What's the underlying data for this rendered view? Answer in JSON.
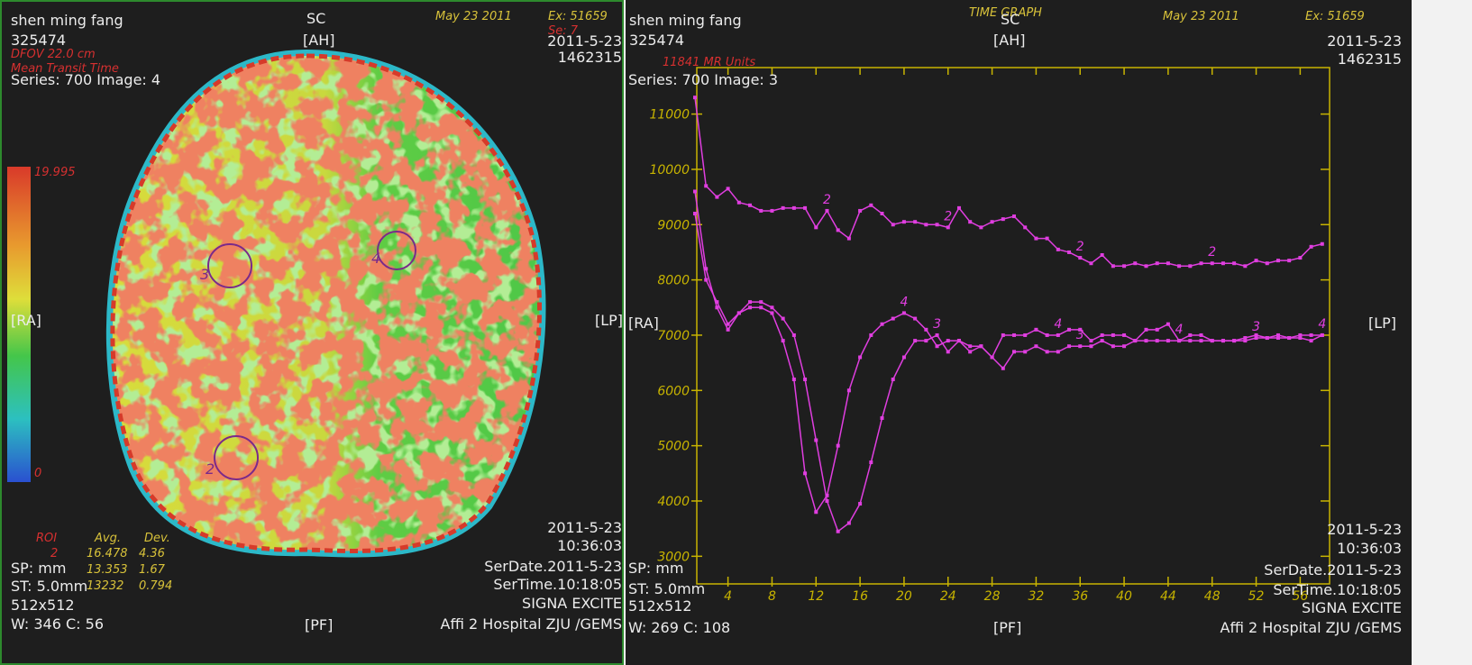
{
  "left_panel": {
    "patient": "shen ming fang",
    "patient_id": "325474",
    "dfov": "DFOV 22.0 cm",
    "map_name": "Mean Transit Time",
    "series_image": "Series: 700 Image: 4",
    "plane": "SC",
    "top_orientation": "[AH]",
    "date": "May 23 2011",
    "exam": "Ex: 51659",
    "series_no": "Se: 7",
    "study_date": "2011-5-23",
    "study_id": "1462315",
    "left_orientation": "[RA]",
    "right_orientation": "[LP]",
    "colorbar_max": "19.995",
    "colorbar_min": "0",
    "roi_table": {
      "header": [
        "ROI",
        "Avg.",
        "Dev."
      ],
      "rows": [
        [
          "2",
          "16.478",
          "4.36"
        ],
        [
          "",
          "13.353",
          "1.67"
        ],
        [
          "",
          "13232",
          "0.794"
        ]
      ]
    },
    "roi_labels": [
      "3",
      "4",
      "2"
    ],
    "spacing": "SP: mm",
    "thickness": "ST: 5.0mm",
    "matrix": "512x512",
    "window": "W: 346 C: 56",
    "bottom_orientation": "[PF]",
    "acq_date": "2011-5-23",
    "acq_time": "10:36:03",
    "ser_date": "SerDate.2011-5-23",
    "ser_time": "SerTime.10:18:05",
    "scanner": "SIGNA EXCITE",
    "hospital": "Affi 2 Hospital ZJU /GEMS"
  },
  "right_panel": {
    "patient": "shen ming fang",
    "patient_id": "325474",
    "graph_title": "TIME GRAPH",
    "plane": "SC",
    "top_orientation": "[AH]",
    "date": "May 23 2011",
    "exam": "Ex: 51659",
    "study_date": "2011-5-23",
    "study_id": "1462315",
    "series_image": "Series: 700 Image: 3",
    "left_orientation": "[RA]",
    "right_orientation": "[LP]",
    "spacing": "SP: mm",
    "thickness": "ST: 5.0mm",
    "matrix": "512x512",
    "window": "W: 269 C: 108",
    "bottom_orientation": "[PF]",
    "acq_date": "2011-5-23",
    "acq_time": "10:36:03",
    "ser_date": "SerDate.2011-5-23",
    "ser_time": "SerTime.10:18:05",
    "scanner": "SIGNA EXCITE",
    "hospital": "Affi 2 Hospital ZJU /GEMS"
  },
  "chart_data": {
    "type": "line",
    "y_label": "11841 MR Units",
    "x": [
      1,
      2,
      3,
      4,
      5,
      6,
      7,
      8,
      9,
      10,
      11,
      12,
      13,
      14,
      15,
      16,
      17,
      18,
      19,
      20,
      21,
      22,
      23,
      24,
      25,
      26,
      27,
      28,
      29,
      30,
      31,
      32,
      33,
      34,
      35,
      36,
      37,
      38,
      39,
      40,
      41,
      42,
      43,
      44,
      45,
      46,
      47,
      48,
      49,
      50,
      51,
      52,
      53,
      54,
      55,
      56,
      57,
      58
    ],
    "series": [
      {
        "name": "2",
        "color": "#e03ee0",
        "values": [
          11300,
          9700,
          9500,
          9650,
          9400,
          9350,
          9250,
          9250,
          9300,
          9300,
          9300,
          8950,
          9250,
          8900,
          8750,
          9250,
          9350,
          9200,
          9000,
          9050,
          9050,
          9000,
          9000,
          8950,
          9300,
          9050,
          8950,
          9050,
          9100,
          9150,
          8950,
          8750,
          8750,
          8550,
          8500,
          8400,
          8300,
          8450,
          8250,
          8250,
          8300,
          8250,
          8300,
          8300,
          8250,
          8250,
          8300,
          8300,
          8300,
          8300,
          8250,
          8350,
          8300,
          8350,
          8350,
          8400,
          8600,
          8650
        ]
      },
      {
        "name": "3",
        "color": "#e03ee0",
        "values": [
          9600,
          8200,
          7500,
          7100,
          7400,
          7600,
          7600,
          7500,
          7300,
          7000,
          6200,
          5100,
          4000,
          3450,
          3600,
          3950,
          4700,
          5500,
          6200,
          6600,
          6900,
          6900,
          7000,
          6700,
          6900,
          6800,
          6800,
          6600,
          6400,
          6700,
          6700,
          6800,
          6700,
          6700,
          6800,
          6800,
          6800,
          6900,
          6800,
          6800,
          6900,
          6900,
          6900,
          6900,
          6900,
          6900,
          6900,
          6900,
          6900,
          6900,
          6900,
          6950,
          6950,
          6950,
          6950,
          6950,
          6900,
          7000
        ]
      },
      {
        "name": "4",
        "color": "#e03ee0",
        "values": [
          9200,
          8000,
          7600,
          7200,
          7400,
          7500,
          7500,
          7400,
          6900,
          6200,
          4500,
          3800,
          4100,
          5000,
          6000,
          6600,
          7000,
          7200,
          7300,
          7400,
          7300,
          7100,
          6800,
          6900,
          6900,
          6700,
          6800,
          6600,
          7000,
          7000,
          7000,
          7100,
          7000,
          7000,
          7100,
          7100,
          6900,
          7000,
          7000,
          7000,
          6900,
          7100,
          7100,
          7200,
          6900,
          7000,
          7000,
          6900,
          6900,
          6900,
          6950,
          7000,
          6950,
          7000,
          6950,
          7000,
          7000,
          7000
        ]
      }
    ],
    "xlim": [
      1,
      59
    ],
    "xticks": [
      4,
      8,
      12,
      16,
      20,
      24,
      28,
      32,
      36,
      40,
      44,
      48,
      52,
      56
    ],
    "ylim": [
      2500,
      11841
    ],
    "yticks": [
      3000,
      4000,
      5000,
      6000,
      7000,
      8000,
      9000,
      10000,
      11000
    ],
    "axis_color": "#c8b400"
  }
}
